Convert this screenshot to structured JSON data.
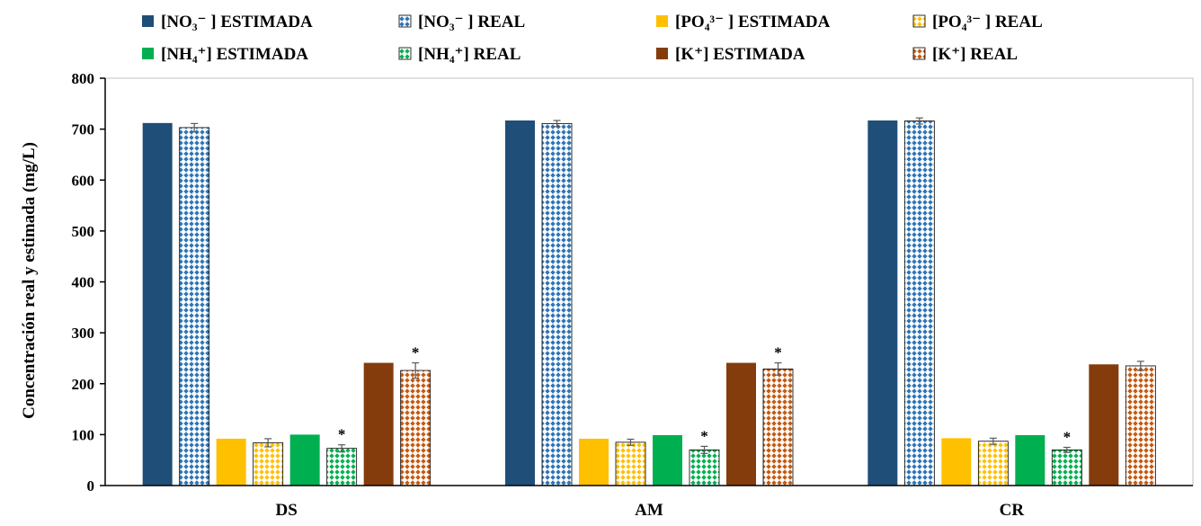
{
  "chart_data": {
    "type": "bar",
    "ylabel": "Concentración real y estimada (mg/L)",
    "xlabel": "",
    "ylim": [
      0,
      800
    ],
    "ytick_step": 100,
    "ytick_labels": [
      "0",
      "100",
      "200",
      "300",
      "400",
      "500",
      "600",
      "700",
      "800"
    ],
    "categories": [
      "DS",
      "AM",
      "CR"
    ],
    "grid": false,
    "legend_position": "top",
    "series": [
      {
        "name": "[NO₃⁻ ] ESTIMADA",
        "values": [
          712,
          717,
          717
        ],
        "color": "#1f4e79",
        "pattern": "solid"
      },
      {
        "name": "[NO₃⁻ ] REAL",
        "values": [
          703,
          711,
          716
        ],
        "errors": [
          8,
          6,
          6
        ],
        "color": "#2e75b6",
        "pattern": "dots"
      },
      {
        "name": "[PO₄³⁻ ] ESTIMADA",
        "values": [
          92,
          92,
          93
        ],
        "color": "#ffc000",
        "pattern": "solid"
      },
      {
        "name": "[PO₄³⁻ ] REAL",
        "values": [
          84,
          85,
          87
        ],
        "errors": [
          8,
          6,
          6
        ],
        "color": "#ffc000",
        "pattern": "dots"
      },
      {
        "name": "[NH₄⁺] ESTIMADA",
        "values": [
          100,
          99,
          99
        ],
        "color": "#00b050",
        "pattern": "solid"
      },
      {
        "name": "[NH₄⁺] REAL",
        "values": [
          73,
          70,
          70
        ],
        "errors": [
          7,
          7,
          5
        ],
        "color": "#00b050",
        "pattern": "dots"
      },
      {
        "name": "[K⁺] ESTIMADA",
        "values": [
          241,
          241,
          238
        ],
        "color": "#843c0c",
        "pattern": "solid"
      },
      {
        "name": "[K⁺] REAL",
        "values": [
          226,
          229,
          235
        ],
        "errors": [
          15,
          12,
          9
        ],
        "color": "#c55a11",
        "pattern": "dots"
      }
    ],
    "annotations": [
      {
        "series": 5,
        "category": 0,
        "text": "*"
      },
      {
        "series": 7,
        "category": 0,
        "text": "*"
      },
      {
        "series": 5,
        "category": 1,
        "text": "*"
      },
      {
        "series": 7,
        "category": 1,
        "text": "*"
      },
      {
        "series": 5,
        "category": 2,
        "text": "*"
      }
    ]
  }
}
